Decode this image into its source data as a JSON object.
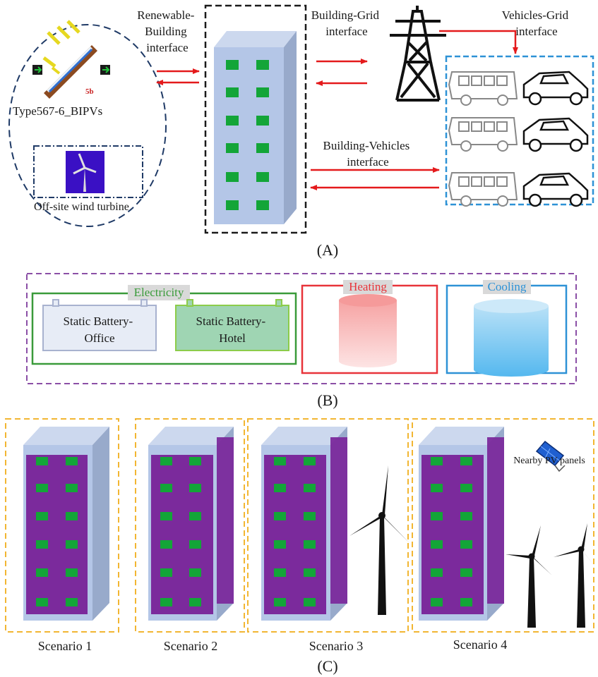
{
  "panel_a": {
    "label": "(A)",
    "renewable_building_interface": [
      "Renewable-",
      "Building",
      "interface"
    ],
    "building_grid_interface": [
      "Building-Grid",
      "interface"
    ],
    "vehicles_grid_interface": [
      "Vehicles-Grid",
      "interface"
    ],
    "building_vehicles_interface": [
      "Building-Vehicles",
      "interface"
    ],
    "bipv_label": "Type567-6_BIPVs",
    "bipv_badge": "5b",
    "wind_label": "Off-site wind turbine"
  },
  "panel_b": {
    "label": "(B)",
    "electricity_title": "Electricity",
    "heating_title": "Heating",
    "cooling_title": "Cooling",
    "battery_office": [
      "Static Battery-",
      "Office"
    ],
    "battery_hotel": [
      "Static Battery-",
      "Hotel"
    ]
  },
  "panel_c": {
    "label": "(C)",
    "scenarios": [
      "Scenario 1",
      "Scenario 2",
      "Scenario 3",
      "Scenario 4"
    ],
    "pv_label": "Nearby PV panels"
  },
  "colors": {
    "arrow_red": "#e41a1c",
    "window_green": "#13a538",
    "facade_purple": "#7b2a9c",
    "building_blue": "#b4c6e7",
    "panel_b_border": "#8b4fa6",
    "scenario_border": "#f2b632",
    "vehicle_border": "#2e92d6",
    "electricity_green": "#3a9b3a",
    "heating_red": "#e8343a",
    "cooling_blue": "#2e92d6"
  }
}
